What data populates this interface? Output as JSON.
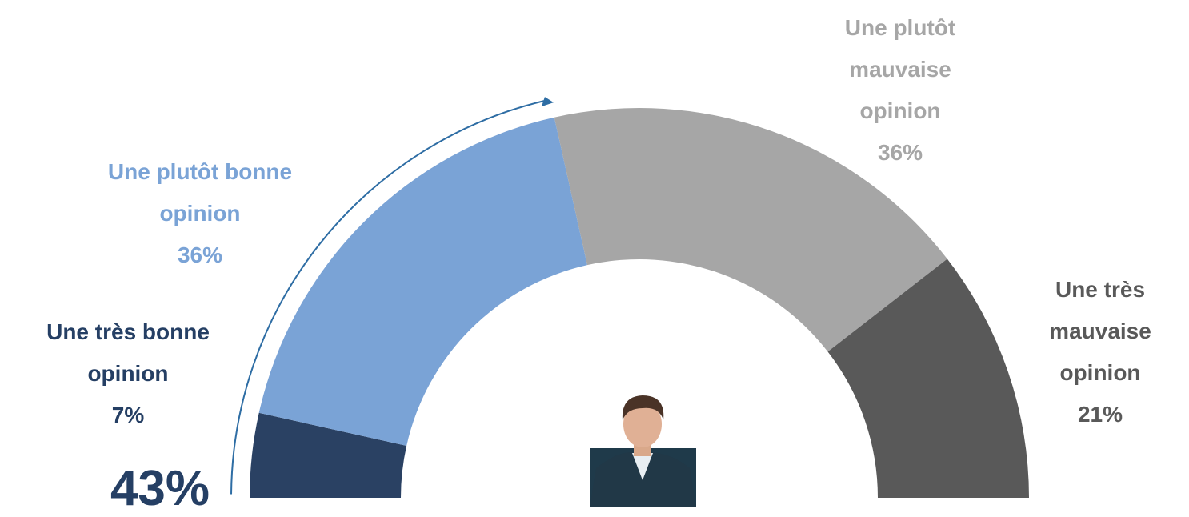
{
  "chart_data": {
    "type": "half-donut",
    "categories": [
      "Une très bonne opinion",
      "Une plutôt bonne opinion",
      "Une plutôt mauvaise opinion",
      "Une très mauvaise opinion"
    ],
    "values": [
      7,
      36,
      36,
      21
    ],
    "value_labels": [
      "7%",
      "36%",
      "36%",
      "21%"
    ],
    "colors": [
      "#2a4163",
      "#7aa3d6",
      "#a6a6a6",
      "#595959"
    ],
    "annotation": "43%"
  }
}
